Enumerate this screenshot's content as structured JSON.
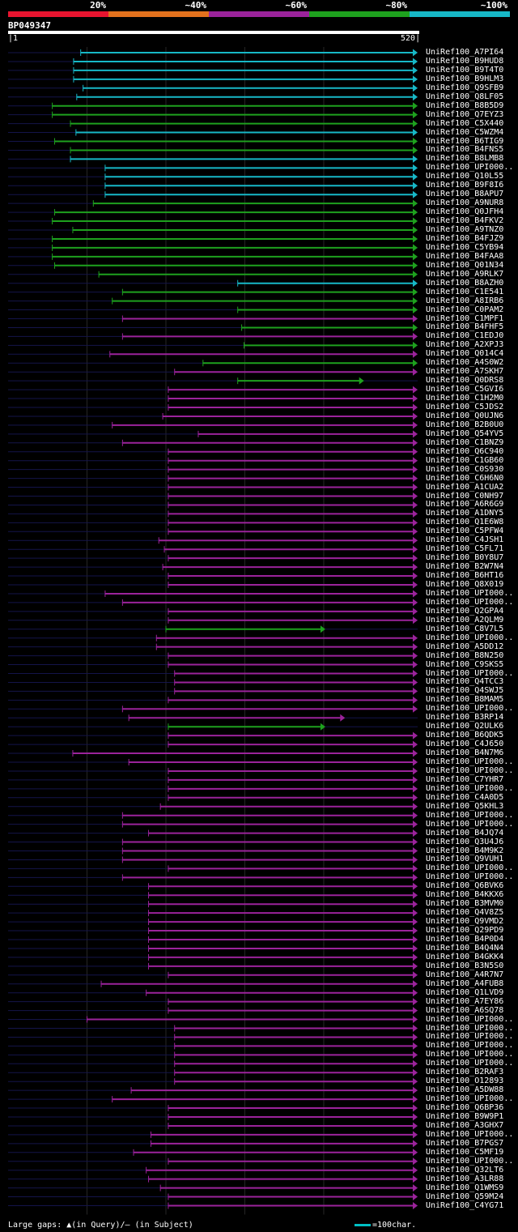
{
  "legend": {
    "bins": [
      {
        "label": "20%",
        "color": "#e8142f"
      },
      {
        "label": "~40%",
        "color": "#e2711d"
      },
      {
        "label": "~60%",
        "color": "#9b239b"
      },
      {
        "label": "~80%",
        "color": "#1ea11e"
      },
      {
        "label": "~100%",
        "color": "#17b8c7"
      }
    ]
  },
  "query": {
    "name": "BP049347",
    "start": "1",
    "end": "520",
    "length": 520
  },
  "footer": {
    "gap_legend": "Large gaps: ▲(in Query)/— (in Subject)",
    "scale_legend": "=100char."
  },
  "hits": [
    {
      "label": "UniRef100_A7PI64",
      "c": 4,
      "s": 93,
      "e": 520
    },
    {
      "label": "UniRef100_B9HUD8",
      "c": 4,
      "s": 84,
      "e": 520
    },
    {
      "label": "UniRef100_B9T4T0",
      "c": 4,
      "s": 84,
      "e": 520
    },
    {
      "label": "UniRef100_B9HLM3",
      "c": 4,
      "s": 84,
      "e": 520
    },
    {
      "label": "UniRef100_Q9SFB9",
      "c": 4,
      "s": 96,
      "e": 520
    },
    {
      "label": "UniRef100_Q8LF05",
      "c": 4,
      "s": 88,
      "e": 520
    },
    {
      "label": "UniRef100_B8B5D9",
      "c": 3,
      "s": 57,
      "e": 520
    },
    {
      "label": "UniRef100_Q7EYZ3",
      "c": 3,
      "s": 57,
      "e": 520
    },
    {
      "label": "UniRef100_C5X440",
      "c": 3,
      "s": 80,
      "e": 520
    },
    {
      "label": "UniRef100_C5WZM4",
      "c": 4,
      "s": 87,
      "e": 520
    },
    {
      "label": "UniRef100_B6TIG9",
      "c": 3,
      "s": 60,
      "e": 520
    },
    {
      "label": "UniRef100_B4FNS5",
      "c": 3,
      "s": 80,
      "e": 520
    },
    {
      "label": "UniRef100_B8LMB8",
      "c": 4,
      "s": 80,
      "e": 520
    },
    {
      "label": "UniRef100_UPI000..",
      "c": 4,
      "s": 124,
      "e": 520
    },
    {
      "label": "UniRef100_Q10L55",
      "c": 4,
      "s": 124,
      "e": 520
    },
    {
      "label": "UniRef100_B9F8I6",
      "c": 4,
      "s": 124,
      "e": 520
    },
    {
      "label": "UniRef100_B8APU7",
      "c": 4,
      "s": 124,
      "e": 520
    },
    {
      "label": "UniRef100_A9NUR8",
      "c": 3,
      "s": 109,
      "e": 520
    },
    {
      "label": "UniRef100_Q0JFH4",
      "c": 3,
      "s": 60,
      "e": 520
    },
    {
      "label": "UniRef100_B4FKV2",
      "c": 3,
      "s": 57,
      "e": 520
    },
    {
      "label": "UniRef100_A9TNZ0",
      "c": 3,
      "s": 83,
      "e": 520
    },
    {
      "label": "UniRef100_B4FJZ9",
      "c": 3,
      "s": 57,
      "e": 520
    },
    {
      "label": "UniRef100_C5YB94",
      "c": 3,
      "s": 57,
      "e": 520
    },
    {
      "label": "UniRef100_B4FAA8",
      "c": 3,
      "s": 57,
      "e": 520
    },
    {
      "label": "UniRef100_Q01N34",
      "c": 3,
      "s": 60,
      "e": 520
    },
    {
      "label": "UniRef100_A9RLK7",
      "c": 3,
      "s": 116,
      "e": 520
    },
    {
      "label": "UniRef100_B8AZH0",
      "c": 4,
      "s": 292,
      "e": 520
    },
    {
      "label": "UniRef100_C1E541",
      "c": 3,
      "s": 146,
      "e": 520
    },
    {
      "label": "UniRef100_A8IRB6",
      "c": 3,
      "s": 133,
      "e": 520
    },
    {
      "label": "UniRef100_C0PAM2",
      "c": 3,
      "s": 292,
      "e": 520
    },
    {
      "label": "UniRef100_C1MPF1",
      "c": 2,
      "s": 146,
      "e": 520
    },
    {
      "label": "UniRef100_B4FHF5",
      "c": 3,
      "s": 297,
      "e": 520
    },
    {
      "label": "UniRef100_C1EDJ0",
      "c": 2,
      "s": 146,
      "e": 520
    },
    {
      "label": "UniRef100_A2XPJ3",
      "c": 3,
      "s": 300,
      "e": 520
    },
    {
      "label": "UniRef100_Q014C4",
      "c": 2,
      "s": 130,
      "e": 520
    },
    {
      "label": "UniRef100_A4S0W2",
      "c": 3,
      "s": 248,
      "e": 520
    },
    {
      "label": "UniRef100_A7SKH7",
      "c": 2,
      "s": 212,
      "e": 520
    },
    {
      "label": "UniRef100_Q0DRS8",
      "c": 3,
      "s": 292,
      "e": 452
    },
    {
      "label": "UniRef100_C5GVI6",
      "c": 2,
      "s": 204,
      "e": 520
    },
    {
      "label": "UniRef100_C1H2M0",
      "c": 2,
      "s": 204,
      "e": 520
    },
    {
      "label": "UniRef100_C5JDS2",
      "c": 2,
      "s": 204,
      "e": 520
    },
    {
      "label": "UniRef100_Q0UJN6",
      "c": 2,
      "s": 197,
      "e": 520
    },
    {
      "label": "UniRef100_B2B0U0",
      "c": 2,
      "s": 133,
      "e": 520
    },
    {
      "label": "UniRef100_Q54YV5",
      "c": 2,
      "s": 242,
      "e": 520
    },
    {
      "label": "UniRef100_C1BNZ9",
      "c": 2,
      "s": 146,
      "e": 520
    },
    {
      "label": "UniRef100_Q6C940",
      "c": 2,
      "s": 204,
      "e": 520
    },
    {
      "label": "UniRef100_C1GB60",
      "c": 2,
      "s": 204,
      "e": 520
    },
    {
      "label": "UniRef100_C0S930",
      "c": 2,
      "s": 204,
      "e": 520
    },
    {
      "label": "UniRef100_C6H6N0",
      "c": 2,
      "s": 204,
      "e": 520
    },
    {
      "label": "UniRef100_A1CUA2",
      "c": 2,
      "s": 204,
      "e": 520
    },
    {
      "label": "UniRef100_C0NH97",
      "c": 2,
      "s": 204,
      "e": 520
    },
    {
      "label": "UniRef100_A6R6G9",
      "c": 2,
      "s": 204,
      "e": 520
    },
    {
      "label": "UniRef100_A1DNY5",
      "c": 2,
      "s": 204,
      "e": 520
    },
    {
      "label": "UniRef100_Q1E6W8",
      "c": 2,
      "s": 204,
      "e": 520
    },
    {
      "label": "UniRef100_C5PFW4",
      "c": 2,
      "s": 204,
      "e": 520
    },
    {
      "label": "UniRef100_C4JSH1",
      "c": 2,
      "s": 192,
      "e": 520
    },
    {
      "label": "UniRef100_C5FL71",
      "c": 2,
      "s": 199,
      "e": 520
    },
    {
      "label": "UniRef100_B0Y8U7",
      "c": 2,
      "s": 204,
      "e": 520
    },
    {
      "label": "UniRef100_B2W7N4",
      "c": 2,
      "s": 197,
      "e": 520
    },
    {
      "label": "UniRef100_B6HT16",
      "c": 2,
      "s": 204,
      "e": 520
    },
    {
      "label": "UniRef100_Q8X019",
      "c": 2,
      "s": 204,
      "e": 520
    },
    {
      "label": "UniRef100_UPI000..",
      "c": 2,
      "s": 124,
      "e": 520
    },
    {
      "label": "UniRef100_UPI000..",
      "c": 2,
      "s": 146,
      "e": 520
    },
    {
      "label": "UniRef100_Q2GPA4",
      "c": 2,
      "s": 204,
      "e": 520
    },
    {
      "label": "UniRef100_A2QLM9",
      "c": 2,
      "s": 204,
      "e": 520
    },
    {
      "label": "UniRef100_C8V7L5",
      "c": 3,
      "s": 201,
      "e": 403
    },
    {
      "label": "UniRef100_UPI000..",
      "c": 2,
      "s": 189,
      "e": 520
    },
    {
      "label": "UniRef100_A5DD12",
      "c": 2,
      "s": 189,
      "e": 520
    },
    {
      "label": "UniRef100_B8N250",
      "c": 2,
      "s": 204,
      "e": 520
    },
    {
      "label": "UniRef100_C9SKS5",
      "c": 2,
      "s": 204,
      "e": 520
    },
    {
      "label": "UniRef100_UPI000..",
      "c": 2,
      "s": 212,
      "e": 520
    },
    {
      "label": "UniRef100_Q4TCC3",
      "c": 2,
      "s": 212,
      "e": 520
    },
    {
      "label": "UniRef100_Q4SWJ5",
      "c": 2,
      "s": 212,
      "e": 520
    },
    {
      "label": "UniRef100_B8MAM5",
      "c": 2,
      "s": 204,
      "e": 520
    },
    {
      "label": "UniRef100_UPI000..",
      "c": 2,
      "s": 146,
      "e": 520
    },
    {
      "label": "UniRef100_B3RP14",
      "c": 2,
      "s": 154,
      "e": 428
    },
    {
      "label": "UniRef100_Q2ULK6",
      "c": 3,
      "s": 204,
      "e": 403
    },
    {
      "label": "UniRef100_B6QDK5",
      "c": 2,
      "s": 204,
      "e": 520
    },
    {
      "label": "UniRef100_C4J650",
      "c": 2,
      "s": 204,
      "e": 520
    },
    {
      "label": "UniRef100_B4N7M6",
      "c": 2,
      "s": 83,
      "e": 520
    },
    {
      "label": "UniRef100_UPI000..",
      "c": 2,
      "s": 154,
      "e": 520
    },
    {
      "label": "UniRef100_UPI000..",
      "c": 2,
      "s": 204,
      "e": 520
    },
    {
      "label": "UniRef100_C7YHR7",
      "c": 2,
      "s": 204,
      "e": 520
    },
    {
      "label": "UniRef100_UPI000..",
      "c": 2,
      "s": 204,
      "e": 520
    },
    {
      "label": "UniRef100_C4A0D5",
      "c": 2,
      "s": 204,
      "e": 520
    },
    {
      "label": "UniRef100_Q5KHL3",
      "c": 2,
      "s": 194,
      "e": 520
    },
    {
      "label": "UniRef100_UPI000..",
      "c": 2,
      "s": 146,
      "e": 520
    },
    {
      "label": "UniRef100_UPI000..",
      "c": 2,
      "s": 146,
      "e": 520
    },
    {
      "label": "UniRef100_B4JQ74",
      "c": 2,
      "s": 179,
      "e": 520
    },
    {
      "label": "UniRef100_Q3U4J6",
      "c": 2,
      "s": 146,
      "e": 520
    },
    {
      "label": "UniRef100_B4M9K2",
      "c": 2,
      "s": 146,
      "e": 520
    },
    {
      "label": "UniRef100_Q9VUH1",
      "c": 2,
      "s": 146,
      "e": 520
    },
    {
      "label": "UniRef100_UPI000..",
      "c": 2,
      "s": 204,
      "e": 520
    },
    {
      "label": "UniRef100_UPI000..",
      "c": 2,
      "s": 146,
      "e": 520
    },
    {
      "label": "UniRef100_Q6BVK6",
      "c": 2,
      "s": 179,
      "e": 520
    },
    {
      "label": "UniRef100_B4KKX6",
      "c": 2,
      "s": 179,
      "e": 520
    },
    {
      "label": "UniRef100_B3MVM0",
      "c": 2,
      "s": 179,
      "e": 520
    },
    {
      "label": "UniRef100_Q4V8Z5",
      "c": 2,
      "s": 179,
      "e": 520
    },
    {
      "label": "UniRef100_Q9VMD2",
      "c": 2,
      "s": 179,
      "e": 520
    },
    {
      "label": "UniRef100_Q29PD9",
      "c": 2,
      "s": 179,
      "e": 520
    },
    {
      "label": "UniRef100_B4P0D4",
      "c": 2,
      "s": 179,
      "e": 520
    },
    {
      "label": "UniRef100_B4Q4N4",
      "c": 2,
      "s": 179,
      "e": 520
    },
    {
      "label": "UniRef100_B4GKK4",
      "c": 2,
      "s": 179,
      "e": 520
    },
    {
      "label": "UniRef100_B3N5S0",
      "c": 2,
      "s": 179,
      "e": 520
    },
    {
      "label": "UniRef100_A4R7N7",
      "c": 2,
      "s": 204,
      "e": 520
    },
    {
      "label": "UniRef100_A4FUB8",
      "c": 2,
      "s": 119,
      "e": 520
    },
    {
      "label": "UniRef100_Q1LVD9",
      "c": 2,
      "s": 176,
      "e": 520
    },
    {
      "label": "UniRef100_A7EY86",
      "c": 2,
      "s": 204,
      "e": 520
    },
    {
      "label": "UniRef100_A6SQ78",
      "c": 2,
      "s": 204,
      "e": 520
    },
    {
      "label": "UniRef100_UPI000..",
      "c": 2,
      "s": 101,
      "e": 520
    },
    {
      "label": "UniRef100_UPI000..",
      "c": 2,
      "s": 212,
      "e": 520
    },
    {
      "label": "UniRef100_UPI000..",
      "c": 2,
      "s": 212,
      "e": 520
    },
    {
      "label": "UniRef100_UPI000..",
      "c": 2,
      "s": 212,
      "e": 520
    },
    {
      "label": "UniRef100_UPI000..",
      "c": 2,
      "s": 212,
      "e": 520
    },
    {
      "label": "UniRef100_UPI000..",
      "c": 2,
      "s": 212,
      "e": 520
    },
    {
      "label": "UniRef100_B2RAF3",
      "c": 2,
      "s": 212,
      "e": 520
    },
    {
      "label": "UniRef100_O12893",
      "c": 2,
      "s": 212,
      "e": 520
    },
    {
      "label": "UniRef100_A5DW88",
      "c": 2,
      "s": 157,
      "e": 520
    },
    {
      "label": "UniRef100_UPI000..",
      "c": 2,
      "s": 133,
      "e": 520
    },
    {
      "label": "UniRef100_Q6BP36",
      "c": 2,
      "s": 204,
      "e": 520
    },
    {
      "label": "UniRef100_B9W9P1",
      "c": 2,
      "s": 204,
      "e": 520
    },
    {
      "label": "UniRef100_A3GHX7",
      "c": 2,
      "s": 204,
      "e": 520
    },
    {
      "label": "UniRef100_UPI000..",
      "c": 2,
      "s": 182,
      "e": 520
    },
    {
      "label": "UniRef100_B7PGS7",
      "c": 2,
      "s": 182,
      "e": 520
    },
    {
      "label": "UniRef100_C5MF19",
      "c": 2,
      "s": 160,
      "e": 520
    },
    {
      "label": "UniRef100_UPI000..",
      "c": 2,
      "s": 204,
      "e": 520
    },
    {
      "label": "UniRef100_Q32LT6",
      "c": 2,
      "s": 176,
      "e": 520
    },
    {
      "label": "UniRef100_A3LR88",
      "c": 2,
      "s": 179,
      "e": 520
    },
    {
      "label": "UniRef100_Q1WMS9",
      "c": 2,
      "s": 194,
      "e": 520
    },
    {
      "label": "UniRef100_Q59M24",
      "c": 2,
      "s": 204,
      "e": 520
    },
    {
      "label": "UniRef100_C4YG71",
      "c": 2,
      "s": 204,
      "e": 520
    }
  ]
}
